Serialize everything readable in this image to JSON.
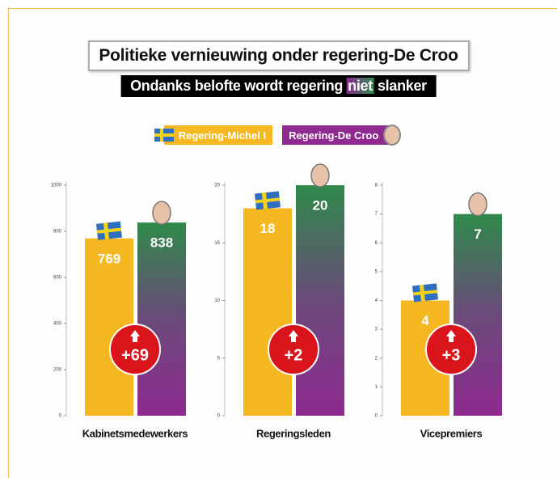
{
  "chart_data": [
    {
      "type": "bar",
      "title": "Politieke vernieuwing onder regering-De Croo",
      "subtitle": [
        "Ondanks belofte wordt regering",
        "niet",
        "slanker"
      ],
      "xlabel": "Kabinetsmedewerkers",
      "series": [
        {
          "name": "Regering-Michel I",
          "color": "#f5b820",
          "values": [
            769
          ]
        },
        {
          "name": "Regering-De Croo",
          "color": "#8e2a90",
          "values": [
            838
          ]
        }
      ],
      "annotation": "+69",
      "ylim": [
        0,
        1000
      ],
      "yticks": [
        0,
        200,
        400,
        600,
        800,
        1000
      ]
    },
    {
      "type": "bar",
      "xlabel": "Regeringsleden",
      "series": [
        {
          "color": "#f5b820",
          "values": [
            18
          ]
        },
        {
          "color": "#8e2a90",
          "values": [
            20
          ]
        }
      ],
      "annotation": "+2",
      "ylim": [
        0,
        20
      ],
      "yticks": [
        0,
        5,
        10,
        15,
        20
      ]
    },
    {
      "type": "bar",
      "xlabel": "Vicepremiers",
      "series": [
        {
          "color": "#f5b820",
          "values": [
            4
          ]
        },
        {
          "color": "#8e2a90",
          "values": [
            7
          ]
        }
      ],
      "annotation": "+3",
      "ylim": [
        0,
        8
      ],
      "yticks": [
        0,
        1,
        2,
        3,
        4,
        5,
        6,
        7,
        8
      ]
    }
  ]
}
